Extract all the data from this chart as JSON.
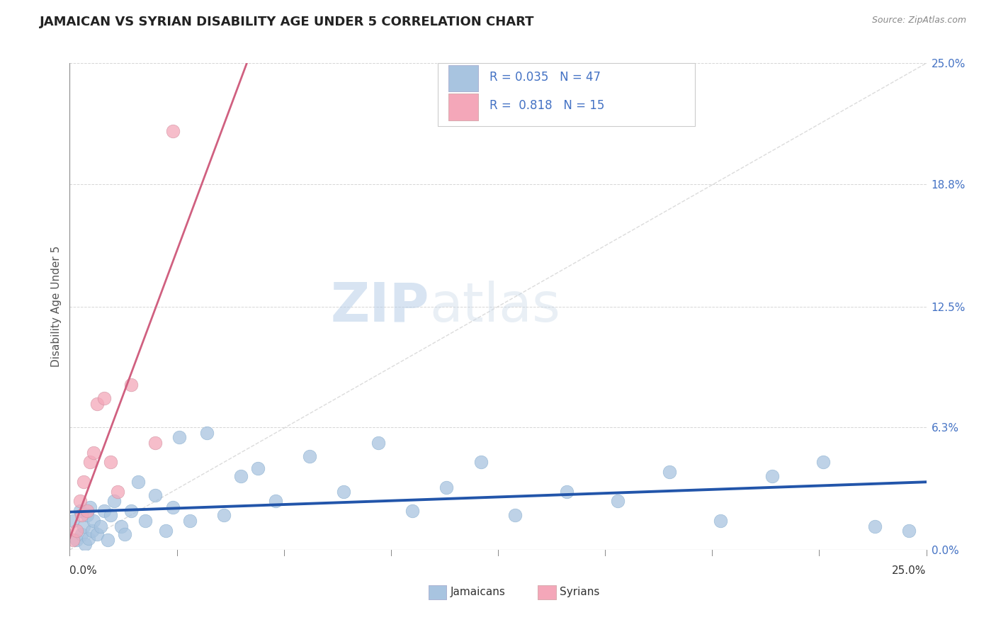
{
  "title": "JAMAICAN VS SYRIAN DISABILITY AGE UNDER 5 CORRELATION CHART",
  "source": "Source: ZipAtlas.com",
  "ylabel": "Disability Age Under 5",
  "ytick_labels": [
    "0.0%",
    "6.3%",
    "12.5%",
    "18.8%",
    "25.0%"
  ],
  "ytick_values": [
    0,
    6.3,
    12.5,
    18.8,
    25.0
  ],
  "jamaican_color": "#a8c4e0",
  "syrian_color": "#f4a7b9",
  "jamaican_line_color": "#2255aa",
  "syrian_line_color": "#d06080",
  "diag_line_color": "#d8d8d8",
  "R_jamaican": 0.035,
  "N_jamaican": 47,
  "R_syrian": 0.818,
  "N_syrian": 15,
  "watermark_zip": "ZIP",
  "watermark_atlas": "atlas",
  "jamaican_x": [
    0.1,
    0.2,
    0.3,
    0.35,
    0.4,
    0.45,
    0.5,
    0.55,
    0.6,
    0.65,
    0.7,
    0.8,
    0.9,
    1.0,
    1.1,
    1.2,
    1.3,
    1.5,
    1.6,
    1.8,
    2.0,
    2.2,
    2.5,
    2.8,
    3.0,
    3.2,
    3.5,
    4.0,
    4.5,
    5.0,
    5.5,
    6.0,
    7.0,
    8.0,
    9.0,
    10.0,
    11.0,
    12.0,
    13.0,
    14.5,
    16.0,
    17.5,
    19.0,
    20.5,
    22.0,
    23.5,
    24.5
  ],
  "jamaican_y": [
    1.5,
    0.5,
    2.0,
    0.8,
    1.2,
    0.3,
    1.8,
    0.6,
    2.2,
    1.0,
    1.5,
    0.8,
    1.2,
    2.0,
    0.5,
    1.8,
    2.5,
    1.2,
    0.8,
    2.0,
    3.5,
    1.5,
    2.8,
    1.0,
    2.2,
    5.8,
    1.5,
    6.0,
    1.8,
    3.8,
    4.2,
    2.5,
    4.8,
    3.0,
    5.5,
    2.0,
    3.2,
    4.5,
    1.8,
    3.0,
    2.5,
    4.0,
    1.5,
    3.8,
    4.5,
    1.2,
    1.0
  ],
  "syrian_x": [
    0.1,
    0.2,
    0.3,
    0.35,
    0.4,
    0.5,
    0.6,
    0.7,
    0.8,
    1.0,
    1.2,
    1.4,
    1.8,
    2.5,
    3.0
  ],
  "syrian_y": [
    0.5,
    1.0,
    2.5,
    1.8,
    3.5,
    2.0,
    4.5,
    5.0,
    7.5,
    7.8,
    4.5,
    3.0,
    8.5,
    5.5,
    21.5
  ]
}
